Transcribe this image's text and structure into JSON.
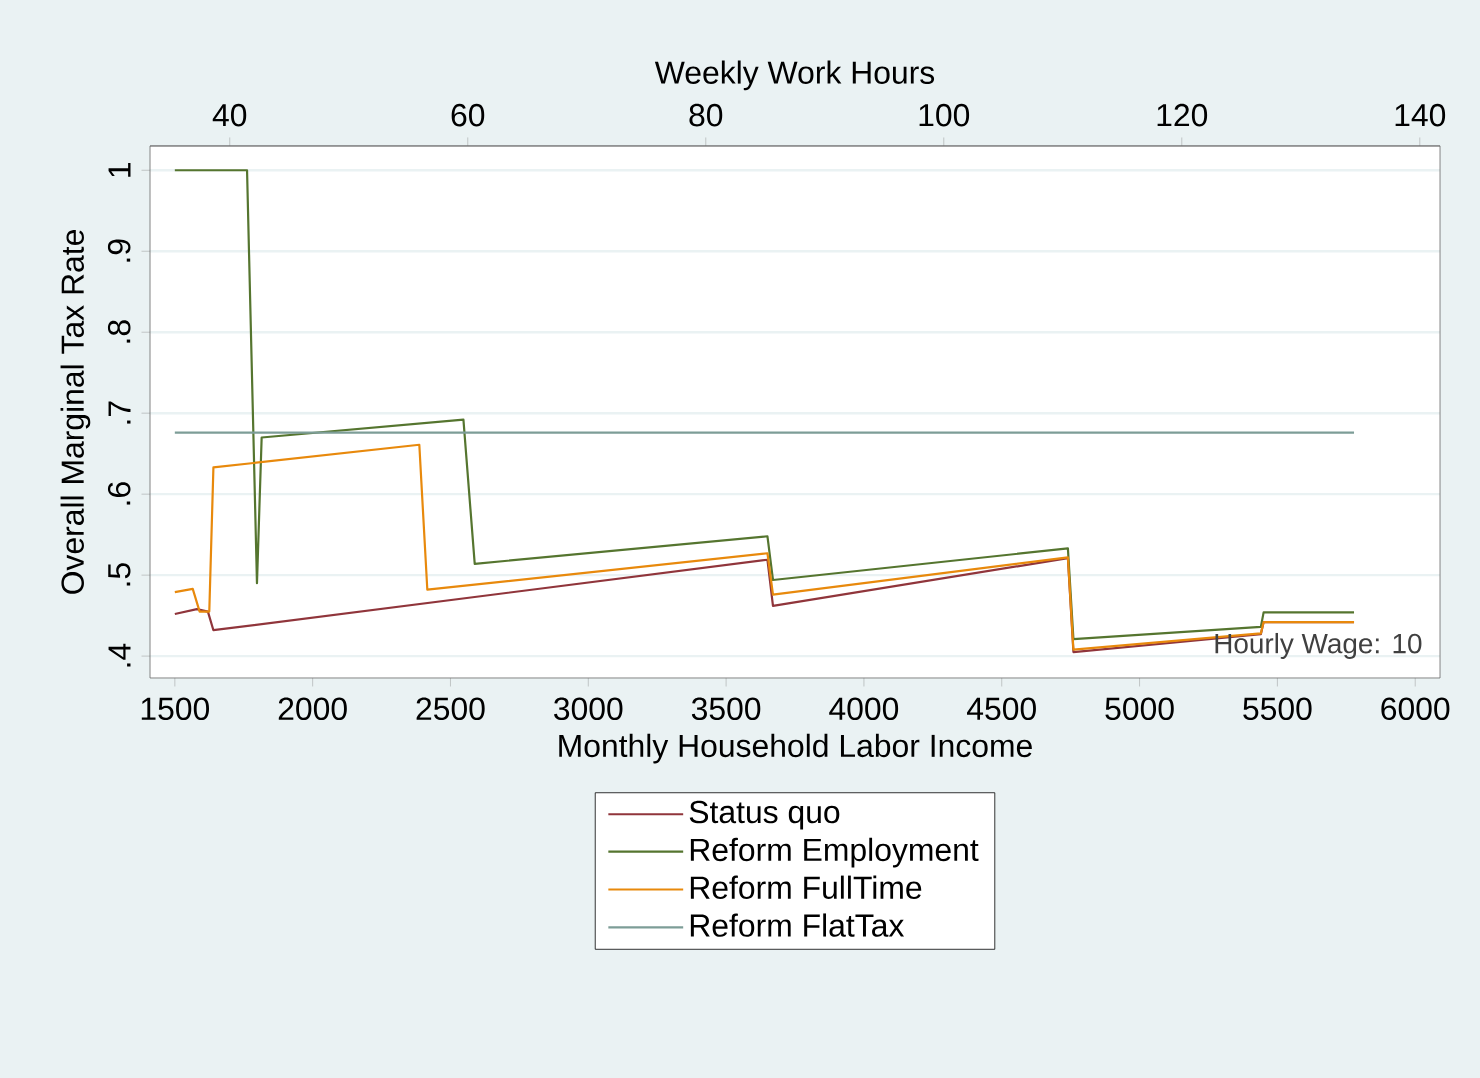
{
  "chart_data": {
    "type": "line",
    "xlabel": "Monthly Household Labor Income",
    "ylabel": "Overall Marginal Tax Rate",
    "x2label": "Weekly Work Hours",
    "annotations": [
      "Hourly Wage: 10"
    ],
    "xlim": [
      1410,
      6090
    ],
    "xticks": [
      1500,
      2000,
      2500,
      3000,
      3500,
      4000,
      4500,
      5000,
      5500,
      6000
    ],
    "x2lim": [
      33.3,
      141.7
    ],
    "x2ticks": [
      40,
      60,
      80,
      100,
      120,
      140
    ],
    "ylim": [
      0.373,
      1.03
    ],
    "yticks": [
      {
        "value": 0.4,
        "label": ".4"
      },
      {
        "value": 0.5,
        "label": ".5"
      },
      {
        "value": 0.6,
        "label": ".6"
      },
      {
        "value": 0.7,
        "label": ".7"
      },
      {
        "value": 0.8,
        "label": ".8"
      },
      {
        "value": 0.9,
        "label": ".9"
      },
      1
    ],
    "grid": "y",
    "legend": "bottom",
    "marker": "none",
    "line_style": "solid",
    "series": [
      {
        "name": "Status quo",
        "color": "#90353b",
        "x": [
          1500,
          1580,
          1620,
          1640,
          3650,
          3670,
          4740,
          4760,
          5440,
          5450,
          5778
        ],
        "values": [
          0.452,
          0.458,
          0.455,
          0.432,
          0.519,
          0.462,
          0.521,
          0.405,
          0.427,
          0.442,
          0.442
        ]
      },
      {
        "name": "Reform Employment",
        "color": "#55752f",
        "x": [
          1500,
          1762,
          1798,
          1815,
          2547,
          2588,
          3650,
          3670,
          4740,
          4760,
          5440,
          5450,
          5778
        ],
        "values": [
          1.0,
          1.0,
          0.49,
          0.67,
          0.692,
          0.514,
          0.548,
          0.494,
          0.533,
          0.421,
          0.436,
          0.454,
          0.454
        ]
      },
      {
        "name": "Reform FullTime",
        "color": "#e8890c",
        "x": [
          1500,
          1565,
          1590,
          1625,
          1640,
          2387,
          2416,
          3650,
          3670,
          4740,
          4760,
          5440,
          5450,
          5778
        ],
        "values": [
          0.479,
          0.483,
          0.455,
          0.455,
          0.633,
          0.661,
          0.482,
          0.527,
          0.476,
          0.522,
          0.408,
          0.428,
          0.442,
          0.442
        ]
      },
      {
        "name": "Reform FlatTax",
        "color": "#7d9d97",
        "x": [
          1500,
          5778
        ],
        "values": [
          0.676,
          0.676
        ]
      }
    ]
  }
}
